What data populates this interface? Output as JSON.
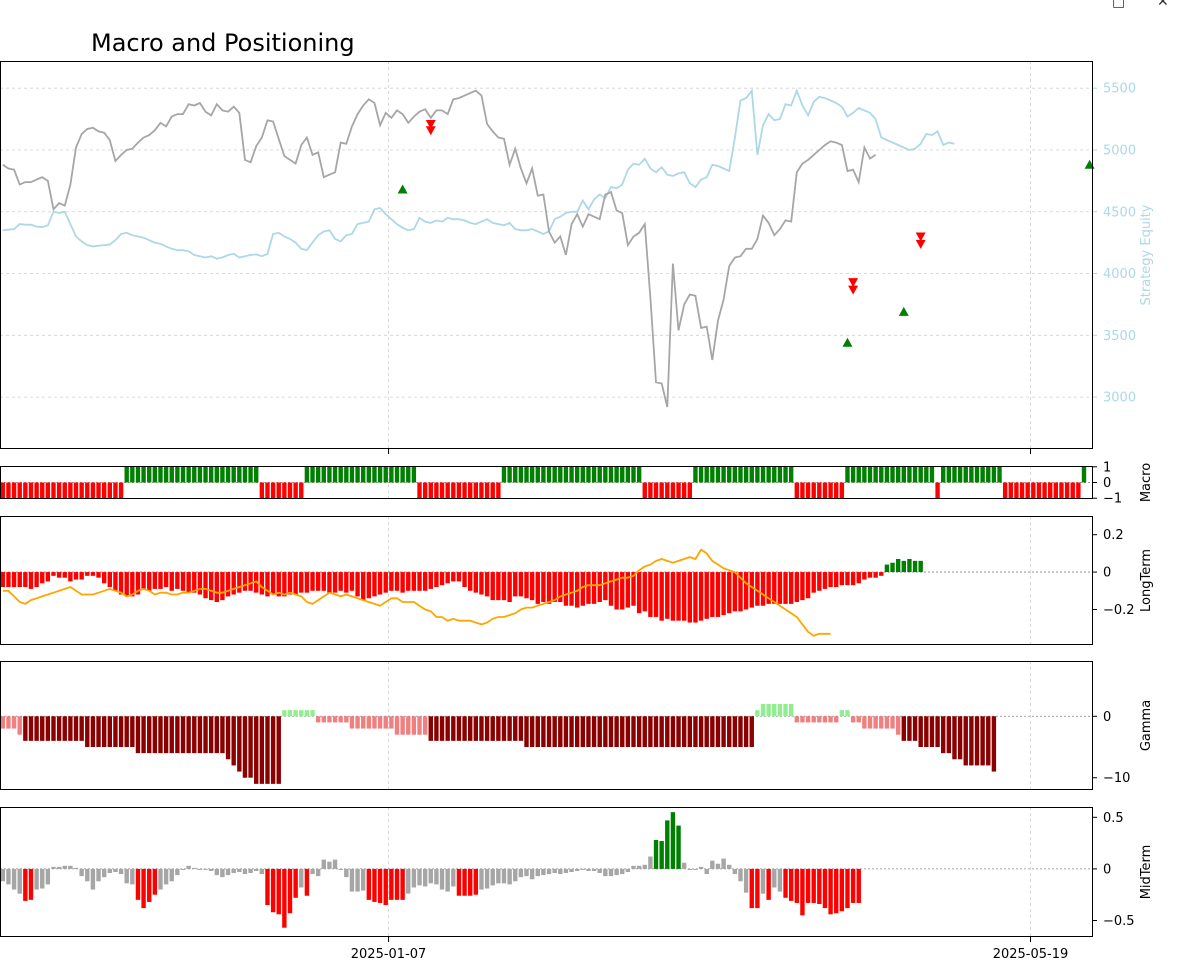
{
  "window": {
    "minimize_glyph": "□",
    "close_glyph": "✕"
  },
  "chart_data": [
    {
      "type": "line",
      "title": "Macro and Positioning",
      "ylabel": "Strategy Equity",
      "ylim": [
        2580,
        5720
      ],
      "yticks": [
        3000,
        3500,
        4000,
        4500,
        5000,
        5500
      ],
      "grid": true,
      "colors": {
        "price": "#a6a6a6",
        "equity": "#add8e6",
        "buy": "#008000",
        "sell": "#ff0000"
      },
      "series": [
        {
          "key": "equity",
          "axis": "right",
          "values": [
            4350,
            4355,
            4360,
            4400,
            4395,
            4395,
            4380,
            4375,
            4390,
            4500,
            4490,
            4500,
            4400,
            4300,
            4260,
            4230,
            4220,
            4225,
            4230,
            4235,
            4270,
            4320,
            4330,
            4310,
            4300,
            4290,
            4270,
            4250,
            4240,
            4220,
            4200,
            4190,
            4190,
            4180,
            4150,
            4140,
            4130,
            4140,
            4120,
            4130,
            4150,
            4160,
            4130,
            4140,
            4150,
            4155,
            4140,
            4160,
            4320,
            4330,
            4300,
            4280,
            4250,
            4200,
            4190,
            4250,
            4310,
            4340,
            4350,
            4280,
            4260,
            4310,
            4320,
            4400,
            4410,
            4420,
            4520,
            4530,
            4480,
            4440,
            4400,
            4370,
            4350,
            4360,
            4450,
            4420,
            4410,
            4430,
            4420,
            4450,
            4440,
            4440,
            4430,
            4410,
            4400,
            4420,
            4440,
            4410,
            4400,
            4390,
            4410,
            4360,
            4350,
            4350,
            4360,
            4340,
            4320,
            4340,
            4440,
            4460,
            4490,
            4500,
            4500,
            4590,
            4520,
            4600,
            4640,
            4610,
            4700,
            4690,
            4720,
            4840,
            4890,
            4880,
            4930,
            4850,
            4820,
            4860,
            4800,
            4790,
            4810,
            4820,
            4730,
            4700,
            4760,
            4780,
            4880,
            4870,
            4850,
            4830,
            5100,
            5400,
            5420,
            5480,
            4960,
            5200,
            5290,
            5240,
            5250,
            5370,
            5360,
            5480,
            5360,
            5280,
            5390,
            5430,
            5420,
            5400,
            5380,
            5350,
            5270,
            5300,
            5340,
            5320,
            5300,
            5250,
            5100,
            5080,
            5060,
            5040,
            5020,
            5000,
            5010,
            5050,
            5130,
            5120,
            5150,
            5040,
            5060,
            5050
          ]
        },
        {
          "key": "price",
          "axis": "left",
          "values": [
            4880,
            4850,
            4840,
            4720,
            4740,
            4740,
            4760,
            4780,
            4750,
            4520,
            4570,
            4550,
            4720,
            5020,
            5130,
            5170,
            5180,
            5150,
            5140,
            5080,
            4910,
            4960,
            5000,
            5010,
            5060,
            5100,
            5120,
            5160,
            5220,
            5190,
            5270,
            5290,
            5290,
            5370,
            5360,
            5380,
            5310,
            5280,
            5370,
            5320,
            5310,
            5350,
            5300,
            4920,
            4900,
            5030,
            5100,
            5240,
            5230,
            5090,
            4950,
            4920,
            4890,
            5040,
            5100,
            4960,
            4980,
            4780,
            4800,
            4820,
            5060,
            5050,
            5190,
            5290,
            5360,
            5410,
            5380,
            5200,
            5300,
            5260,
            5320,
            5290,
            5220,
            5270,
            5310,
            5330,
            5260,
            5320,
            5320,
            5290,
            5410,
            5420,
            5440,
            5460,
            5480,
            5440,
            5210,
            5150,
            5100,
            5090,
            4880,
            5010,
            4850,
            4730,
            4850,
            4630,
            4640,
            4340,
            4250,
            4300,
            4150,
            4400,
            4480,
            4380,
            4480,
            4460,
            4440,
            4640,
            4660,
            4510,
            4490,
            4230,
            4300,
            4330,
            4400,
            3800,
            3120,
            3110,
            2920,
            4080,
            3540,
            3750,
            3830,
            3820,
            3560,
            3570,
            3300,
            3620,
            3790,
            4060,
            4130,
            4140,
            4200,
            4200,
            4280,
            4470,
            4410,
            4310,
            4360,
            4430,
            4420,
            4820,
            4890,
            4920,
            4960,
            5000,
            5040,
            5070,
            5060,
            5040,
            4830,
            4840,
            4740,
            5020,
            4930,
            4960
          ]
        }
      ],
      "markers": [
        {
          "type": "buy",
          "i": 71,
          "y": 4680
        },
        {
          "type": "sell",
          "i": 76,
          "y": 5210
        },
        {
          "type": "sell",
          "i": 76,
          "y": 5160
        },
        {
          "type": "buy",
          "i": 150,
          "y": 3440
        },
        {
          "type": "sell",
          "i": 151,
          "y": 3930
        },
        {
          "type": "sell",
          "i": 151,
          "y": 3870
        },
        {
          "type": "buy",
          "i": 160,
          "y": 3690
        },
        {
          "type": "sell",
          "i": 163,
          "y": 4300
        },
        {
          "type": "sell",
          "i": 163,
          "y": 4240
        },
        {
          "type": "buy",
          "i": 193,
          "y": 4880
        }
      ]
    },
    {
      "type": "bar",
      "ylabel": "Macro",
      "ylim": [
        -1.05,
        1.05
      ],
      "yticks": [
        -1,
        0,
        1
      ],
      "colors": {
        "pos": "#008000",
        "neg": "#ff0000"
      },
      "segments": [
        [
          0,
          21,
          -1
        ],
        [
          22,
          45,
          1
        ],
        [
          46,
          53,
          -1
        ],
        [
          54,
          73,
          1
        ],
        [
          74,
          88,
          -1
        ],
        [
          89,
          113,
          1
        ],
        [
          114,
          122,
          -1
        ],
        [
          123,
          140,
          1
        ],
        [
          141,
          149,
          -1
        ],
        [
          150,
          165,
          1
        ],
        [
          166,
          166,
          -1
        ],
        [
          167,
          177,
          1
        ],
        [
          178,
          191,
          -1
        ],
        [
          192,
          192,
          1
        ]
      ]
    },
    {
      "type": "bar",
      "ylabel": "LongTerm",
      "ylim": [
        -0.39,
        0.3
      ],
      "yticks": [
        -0.2,
        0.0,
        0.2
      ],
      "colors": {
        "pos": "#008000",
        "neg": "#ff0000",
        "line": "#ffa500"
      },
      "bars": [
        -0.08,
        -0.08,
        -0.08,
        -0.08,
        -0.08,
        -0.09,
        -0.08,
        -0.06,
        -0.05,
        -0.02,
        -0.03,
        -0.03,
        -0.05,
        -0.04,
        -0.04,
        -0.02,
        -0.02,
        -0.03,
        -0.06,
        -0.08,
        -0.1,
        -0.12,
        -0.13,
        -0.13,
        -0.12,
        -0.09,
        -0.1,
        -0.09,
        -0.09,
        -0.08,
        -0.1,
        -0.09,
        -0.1,
        -0.11,
        -0.11,
        -0.12,
        -0.14,
        -0.15,
        -0.16,
        -0.15,
        -0.13,
        -0.12,
        -0.11,
        -0.1,
        -0.1,
        -0.11,
        -0.12,
        -0.13,
        -0.12,
        -0.13,
        -0.13,
        -0.12,
        -0.12,
        -0.11,
        -0.11,
        -0.1,
        -0.1,
        -0.1,
        -0.11,
        -0.11,
        -0.1,
        -0.11,
        -0.1,
        -0.13,
        -0.15,
        -0.14,
        -0.13,
        -0.12,
        -0.11,
        -0.1,
        -0.1,
        -0.11,
        -0.1,
        -0.1,
        -0.1,
        -0.1,
        -0.09,
        -0.08,
        -0.07,
        -0.06,
        -0.05,
        -0.05,
        -0.08,
        -0.1,
        -0.11,
        -0.12,
        -0.13,
        -0.15,
        -0.15,
        -0.15,
        -0.16,
        -0.13,
        -0.13,
        -0.14,
        -0.15,
        -0.17,
        -0.16,
        -0.17,
        -0.16,
        -0.16,
        -0.18,
        -0.18,
        -0.19,
        -0.18,
        -0.17,
        -0.17,
        -0.16,
        -0.15,
        -0.18,
        -0.2,
        -0.2,
        -0.19,
        -0.18,
        -0.22,
        -0.21,
        -0.24,
        -0.24,
        -0.26,
        -0.25,
        -0.26,
        -0.26,
        -0.26,
        -0.27,
        -0.27,
        -0.26,
        -0.25,
        -0.24,
        -0.24,
        -0.23,
        -0.22,
        -0.21,
        -0.21,
        -0.2,
        -0.19,
        -0.18,
        -0.18,
        -0.17,
        -0.17,
        -0.17,
        -0.17,
        -0.17,
        -0.16,
        -0.15,
        -0.14,
        -0.11,
        -0.1,
        -0.09,
        -0.08,
        -0.08,
        -0.07,
        -0.07,
        -0.07,
        -0.06,
        -0.04,
        -0.03,
        -0.03,
        -0.02,
        0.04,
        0.05,
        0.07,
        0.06,
        0.07,
        0.06,
        0.06
      ],
      "line": [
        -0.1,
        -0.1,
        -0.13,
        -0.16,
        -0.17,
        -0.15,
        -0.14,
        -0.13,
        -0.12,
        -0.11,
        -0.1,
        -0.09,
        -0.08,
        -0.1,
        -0.12,
        -0.12,
        -0.12,
        -0.11,
        -0.1,
        -0.09,
        -0.1,
        -0.11,
        -0.13,
        -0.12,
        -0.1,
        -0.09,
        -0.1,
        -0.12,
        -0.11,
        -0.11,
        -0.12,
        -0.12,
        -0.11,
        -0.11,
        -0.1,
        -0.09,
        -0.09,
        -0.1,
        -0.11,
        -0.11,
        -0.1,
        -0.09,
        -0.08,
        -0.07,
        -0.06,
        -0.05,
        -0.08,
        -0.1,
        -0.12,
        -0.11,
        -0.12,
        -0.11,
        -0.12,
        -0.13,
        -0.16,
        -0.17,
        -0.15,
        -0.13,
        -0.11,
        -0.12,
        -0.13,
        -0.12,
        -0.13,
        -0.14,
        -0.15,
        -0.16,
        -0.17,
        -0.18,
        -0.16,
        -0.14,
        -0.14,
        -0.16,
        -0.16,
        -0.16,
        -0.18,
        -0.2,
        -0.21,
        -0.24,
        -0.24,
        -0.26,
        -0.25,
        -0.26,
        -0.26,
        -0.26,
        -0.27,
        -0.28,
        -0.27,
        -0.25,
        -0.24,
        -0.24,
        -0.23,
        -0.22,
        -0.2,
        -0.19,
        -0.19,
        -0.18,
        -0.17,
        -0.16,
        -0.15,
        -0.13,
        -0.12,
        -0.11,
        -0.1,
        -0.08,
        -0.07,
        -0.07,
        -0.07,
        -0.06,
        -0.05,
        -0.04,
        -0.03,
        -0.03,
        -0.02,
        0.01,
        0.03,
        0.04,
        0.06,
        0.07,
        0.06,
        0.05,
        0.06,
        0.07,
        0.08,
        0.07,
        0.12,
        0.1,
        0.06,
        0.04,
        0.02,
        0.01,
        0.0,
        -0.03,
        -0.06,
        -0.08,
        -0.1,
        -0.12,
        -0.14,
        -0.16,
        -0.18,
        -0.2,
        -0.22,
        -0.24,
        -0.28,
        -0.32,
        -0.34,
        -0.33,
        -0.33,
        -0.33
      ]
    },
    {
      "type": "bar",
      "ylabel": "Gamma",
      "ylim": [
        -12,
        9
      ],
      "yticks": [
        -10,
        0
      ],
      "colors": {
        "pos_strong": "#008000",
        "pos_weak": "#90ee90",
        "neg_strong": "#8b0000",
        "neg_weak": "#f08080"
      },
      "segments": [
        [
          0,
          2,
          -2
        ],
        [
          3,
          3,
          -3
        ],
        [
          4,
          14,
          -4
        ],
        [
          15,
          23,
          -5
        ],
        [
          24,
          39,
          -6
        ],
        [
          40,
          40,
          -7
        ],
        [
          41,
          41,
          -8
        ],
        [
          42,
          42,
          -9
        ],
        [
          43,
          44,
          -10
        ],
        [
          45,
          49,
          -11
        ],
        [
          50,
          55,
          1
        ],
        [
          56,
          61,
          -1
        ],
        [
          62,
          69,
          -2
        ],
        [
          70,
          75,
          -3
        ],
        [
          76,
          92,
          -4
        ],
        [
          93,
          133,
          -5
        ],
        [
          134,
          134,
          1
        ],
        [
          135,
          140,
          2
        ],
        [
          141,
          148,
          -1
        ],
        [
          149,
          150,
          1
        ],
        [
          151,
          152,
          -1
        ],
        [
          153,
          158,
          -2
        ],
        [
          159,
          159,
          -3
        ],
        [
          160,
          162,
          -4
        ],
        [
          163,
          166,
          -5
        ],
        [
          167,
          168,
          -6
        ],
        [
          169,
          170,
          -7
        ],
        [
          171,
          175,
          -8
        ],
        [
          176,
          176,
          -9
        ]
      ]
    },
    {
      "type": "bar",
      "ylabel": "MidTerm",
      "ylim": [
        -0.66,
        0.6
      ],
      "yticks": [
        -0.5,
        0.0,
        0.5
      ],
      "colors": {
        "pos": "#008000",
        "neg": "#ff0000",
        "neutral": "#a6a6a6"
      },
      "bars": [
        -0.12,
        -0.15,
        -0.2,
        -0.24,
        -0.31,
        -0.3,
        -0.2,
        -0.19,
        -0.15,
        0.02,
        0.02,
        0.03,
        0.03,
        0.01,
        -0.07,
        -0.12,
        -0.2,
        -0.12,
        -0.08,
        -0.04,
        -0.03,
        -0.05,
        -0.14,
        -0.15,
        -0.3,
        -0.38,
        -0.32,
        -0.25,
        -0.2,
        -0.15,
        -0.12,
        -0.06,
        -0.01,
        0.03,
        0.01,
        -0.01,
        -0.01,
        -0.02,
        -0.06,
        -0.08,
        -0.06,
        -0.04,
        -0.03,
        -0.05,
        -0.04,
        -0.02,
        -0.05,
        -0.35,
        -0.42,
        -0.44,
        -0.57,
        -0.43,
        -0.28,
        -0.18,
        -0.26,
        -0.05,
        -0.07,
        0.09,
        0.07,
        0.09,
        -0.01,
        -0.08,
        -0.22,
        -0.22,
        -0.21,
        -0.3,
        -0.32,
        -0.33,
        -0.35,
        -0.3,
        -0.3,
        -0.3,
        -0.24,
        -0.18,
        -0.16,
        -0.17,
        -0.14,
        -0.15,
        -0.2,
        -0.22,
        -0.17,
        -0.26,
        -0.26,
        -0.26,
        -0.25,
        -0.2,
        -0.19,
        -0.16,
        -0.14,
        -0.14,
        -0.15,
        -0.12,
        -0.08,
        -0.07,
        -0.1,
        -0.07,
        -0.06,
        -0.05,
        -0.04,
        -0.05,
        -0.04,
        -0.03,
        -0.02,
        -0.01,
        -0.02,
        -0.02,
        -0.04,
        -0.07,
        -0.07,
        -0.06,
        -0.05,
        -0.03,
        0.03,
        0.03,
        0.04,
        0.12,
        0.28,
        0.27,
        0.47,
        0.55,
        0.42,
        0.06,
        -0.01,
        -0.01,
        0.02,
        -0.05,
        0.08,
        0.05,
        0.1,
        0.04,
        -0.05,
        -0.12,
        -0.23,
        -0.38,
        -0.38,
        -0.24,
        -0.3,
        -0.18,
        -0.22,
        -0.28,
        -0.31,
        -0.33,
        -0.45,
        -0.33,
        -0.33,
        -0.34,
        -0.38,
        -0.44,
        -0.43,
        -0.41,
        -0.38,
        -0.33,
        -0.33
      ],
      "xtick_labels": [
        "2025-01-07",
        "2025-05-19"
      ]
    }
  ]
}
